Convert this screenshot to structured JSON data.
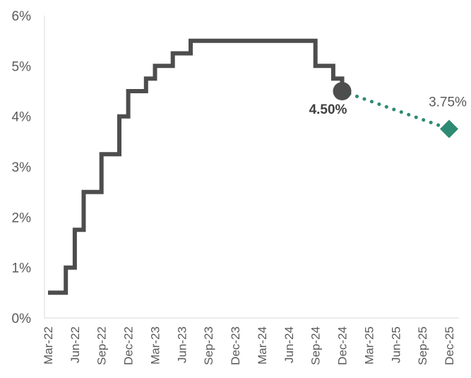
{
  "chart_data": {
    "type": "line",
    "title": "",
    "xlabel": "",
    "ylabel": "",
    "ylim": [
      0,
      6
    ],
    "y_ticks": [
      "0%",
      "1%",
      "2%",
      "3%",
      "4%",
      "5%",
      "6%"
    ],
    "x_ticks": [
      "Mar-22",
      "Jun-22",
      "Sep-22",
      "Dec-22",
      "Mar-23",
      "Jun-23",
      "Sep-23",
      "Dec-23",
      "Mar-24",
      "Jun-24",
      "Sep-24",
      "Dec-24",
      "Mar-25",
      "Jun-25",
      "Sep-25",
      "Dec-25"
    ],
    "grid": false,
    "legend": "none",
    "series": [
      {
        "style": "step",
        "color": "#4d4d4d",
        "points": [
          [
            "2022-03",
            0.5
          ],
          [
            "2022-05",
            1.0
          ],
          [
            "2022-06",
            1.75
          ],
          [
            "2022-07",
            2.5
          ],
          [
            "2022-09",
            3.25
          ],
          [
            "2022-11",
            4.0
          ],
          [
            "2022-12",
            4.5
          ],
          [
            "2023-02",
            4.75
          ],
          [
            "2023-03",
            5.0
          ],
          [
            "2023-05",
            5.25
          ],
          [
            "2023-07",
            5.5
          ],
          [
            "2024-09",
            5.0
          ],
          [
            "2024-11",
            4.75
          ],
          [
            "2024-12",
            4.5
          ]
        ]
      },
      {
        "style": "dotted",
        "color": "#2e8b73",
        "points": [
          [
            "2024-12",
            4.5
          ],
          [
            "2025-12",
            3.75
          ]
        ]
      }
    ],
    "annotations": [
      {
        "x": "2024-12",
        "y": 4.5,
        "text": "4.50%",
        "marker": "circle",
        "color": "#4d4d4d"
      },
      {
        "x": "2025-12",
        "y": 3.75,
        "text": "3.75%",
        "marker": "diamond",
        "color": "#2e8b73"
      }
    ]
  }
}
